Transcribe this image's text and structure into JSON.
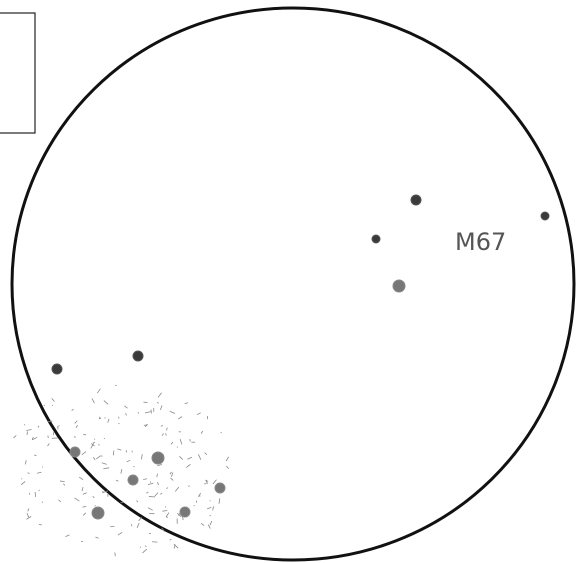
{
  "label": "M67"
}
